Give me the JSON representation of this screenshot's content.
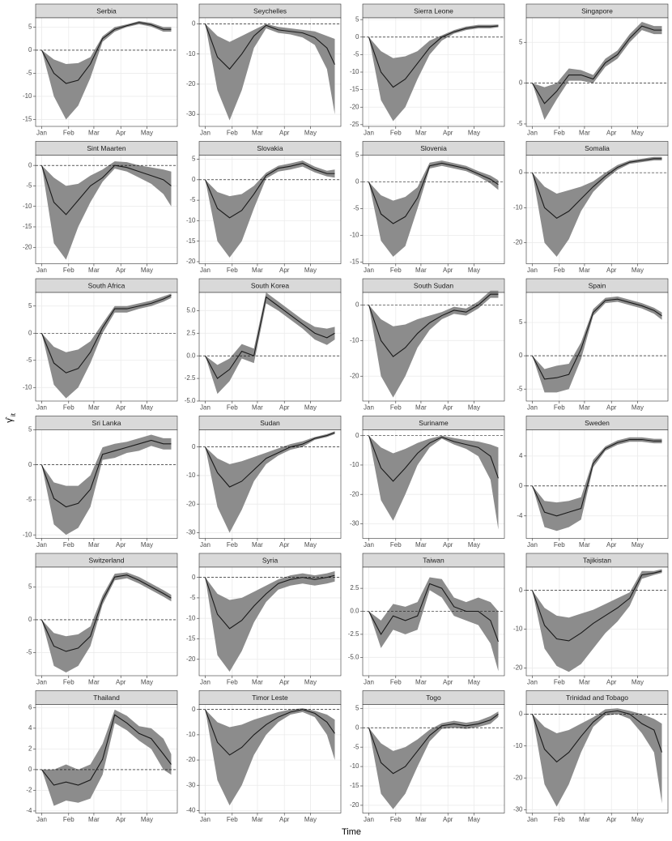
{
  "x_label": "Time",
  "y_label": {
    "symbol": "γ̂",
    "subscript": "it"
  },
  "shared_axes": {
    "x": [
      1,
      15,
      29,
      43,
      57,
      71,
      85,
      99,
      113,
      127,
      141,
      150
    ],
    "xlim": [
      -6,
      157
    ],
    "xticks": [
      {
        "value": 1,
        "label": "Jan"
      },
      {
        "value": 32,
        "label": "Feb"
      },
      {
        "value": 61,
        "label": "Mar"
      },
      {
        "value": 92,
        "label": "Apr"
      },
      {
        "value": 122,
        "label": "May"
      }
    ]
  },
  "style": {
    "line_color": "#1a1a1a",
    "band_color": "#8c8c8c",
    "strip_color": "#d9d9d9",
    "grid": true,
    "reference_line": 0
  },
  "chart_data": [
    {
      "type": "line",
      "title": "Serbia",
      "ylim": [
        -16.5,
        7
      ],
      "yticks": [
        -15,
        -10,
        -5,
        0,
        5
      ],
      "values": [
        0,
        -5,
        -7.2,
        -6.5,
        -3,
        2.5,
        4.5,
        5.3,
        6,
        5.5,
        4.5,
        4.5
      ],
      "lower": [
        0,
        -10,
        -15,
        -12,
        -6,
        1.8,
        4,
        5,
        5.6,
        5.1,
        4,
        4
      ],
      "upper": [
        0,
        -2,
        -3,
        -2.8,
        -1.5,
        3,
        5,
        5.6,
        6.3,
        5.9,
        5,
        5
      ]
    },
    {
      "type": "line",
      "title": "Seychelles",
      "ylim": [
        -34,
        2
      ],
      "yticks": [
        -30,
        -20,
        -10,
        0
      ],
      "values": [
        0,
        -11,
        -15,
        -10,
        -4,
        -0.5,
        -2,
        -2.5,
        -3,
        -4.5,
        -8,
        -13.5
      ],
      "lower": [
        0,
        -22,
        -32,
        -22,
        -8,
        -1.5,
        -3,
        -3.5,
        -4.5,
        -7,
        -15,
        -30
      ],
      "upper": [
        0,
        -4,
        -6,
        -4,
        -2,
        0,
        -1,
        -1.5,
        -2,
        -2.5,
        -4,
        -5
      ]
    },
    {
      "type": "line",
      "title": "Sierra Leone",
      "ylim": [
        -25.5,
        5.5
      ],
      "yticks": [
        -25,
        -20,
        -15,
        -10,
        -5,
        0,
        5
      ],
      "values": [
        0,
        -10,
        -14.3,
        -12,
        -7.5,
        -3,
        0,
        1.5,
        2.5,
        3,
        3,
        3.2
      ],
      "lower": [
        0,
        -18,
        -24,
        -20,
        -12,
        -5,
        -1,
        1,
        2,
        2.5,
        2.5,
        2.8
      ],
      "upper": [
        0,
        -4,
        -6,
        -5.5,
        -4,
        -1,
        0.5,
        2,
        3,
        3.5,
        3.5,
        3.6
      ]
    },
    {
      "type": "line",
      "title": "Singapore",
      "ylim": [
        -5.3,
        8
      ],
      "yticks": [
        -5,
        0,
        5
      ],
      "values": [
        0,
        -2.5,
        -1,
        1,
        1,
        0.5,
        2.5,
        3.5,
        5.5,
        7,
        6.5,
        6.5
      ],
      "lower": [
        0,
        -4.5,
        -2,
        0.3,
        0.3,
        0,
        2,
        3,
        5,
        6.5,
        6,
        6
      ],
      "upper": [
        0,
        -0.5,
        0,
        1.8,
        1.6,
        1,
        3,
        4,
        6,
        7.5,
        7,
        7
      ]
    },
    {
      "type": "line",
      "title": "Sint Maarten",
      "ylim": [
        -24,
        2.5
      ],
      "yticks": [
        -20,
        -15,
        -10,
        -5,
        0
      ],
      "values": [
        0,
        -9,
        -12,
        -8.5,
        -5,
        -3,
        0,
        -0.5,
        -1.5,
        -2.5,
        -3.5,
        -5
      ],
      "lower": [
        0,
        -19,
        -23,
        -15,
        -9,
        -4,
        -0.8,
        -1.5,
        -3,
        -4.5,
        -7,
        -10
      ],
      "upper": [
        0,
        -3,
        -5,
        -4.5,
        -2.5,
        -1,
        1,
        0.8,
        0,
        -0.5,
        -1,
        -1.5
      ]
    },
    {
      "type": "line",
      "title": "Slovakia",
      "ylim": [
        -20.5,
        6
      ],
      "yticks": [
        -20,
        -15,
        -10,
        -5,
        0,
        5
      ],
      "values": [
        0,
        -7,
        -9.3,
        -7.5,
        -3.5,
        1,
        2.8,
        3.3,
        4,
        2.5,
        1.5,
        1.5
      ],
      "lower": [
        0,
        -15,
        -19,
        -15,
        -7,
        0.3,
        2,
        2.5,
        3.2,
        1.8,
        0.8,
        0.5
      ],
      "upper": [
        0,
        -3,
        -4,
        -3.5,
        -1.5,
        1.7,
        3.4,
        4,
        4.7,
        3.2,
        2.2,
        2.5
      ]
    },
    {
      "type": "line",
      "title": "Slovenia",
      "ylim": [
        -15.3,
        5
      ],
      "yticks": [
        -15,
        -10,
        -5,
        0,
        5
      ],
      "values": [
        0,
        -6,
        -7.8,
        -6.5,
        -3,
        3,
        3.5,
        3,
        2.5,
        1.5,
        0.5,
        -0.5
      ],
      "lower": [
        0,
        -11,
        -14,
        -12,
        -5,
        2.5,
        3,
        2.5,
        2,
        1,
        -0.3,
        -1.5
      ],
      "upper": [
        0,
        -2.5,
        -3.5,
        -2.8,
        -1,
        3.6,
        4,
        3.5,
        3,
        2,
        1.2,
        0.3
      ]
    },
    {
      "type": "line",
      "title": "Somalia",
      "ylim": [
        -26,
        5
      ],
      "yticks": [
        -20,
        -10,
        0
      ],
      "values": [
        0,
        -10,
        -13,
        -11,
        -7.5,
        -4,
        -1,
        1.5,
        3,
        3.5,
        4,
        4
      ],
      "lower": [
        0,
        -20,
        -24,
        -19,
        -11,
        -5.5,
        -2,
        0.8,
        2.5,
        3,
        3.5,
        3.5
      ],
      "upper": [
        0,
        -4,
        -6,
        -5,
        -4,
        -2.5,
        0,
        2.2,
        3.5,
        4,
        4.5,
        4.5
      ]
    },
    {
      "type": "line",
      "title": "South Africa",
      "ylim": [
        -12.5,
        7.5
      ],
      "yticks": [
        -10,
        -5,
        0,
        5
      ],
      "values": [
        0,
        -5.5,
        -7.3,
        -6.5,
        -3.5,
        1,
        4.5,
        4.5,
        5,
        5.5,
        6.3,
        7
      ],
      "lower": [
        0,
        -9.5,
        -12,
        -10,
        -5.5,
        0,
        3.8,
        3.8,
        4.5,
        5,
        5.8,
        6.5
      ],
      "upper": [
        0,
        -2.5,
        -3.5,
        -3,
        -1.5,
        1.8,
        5,
        5,
        5.5,
        6,
        6.8,
        7.3
      ]
    },
    {
      "type": "line",
      "title": "South Korea",
      "ylim": [
        -5,
        7
      ],
      "yticks": [
        {
          "value": -5,
          "label": "-5.0"
        },
        {
          "value": -2.5,
          "label": "-2.5"
        },
        {
          "value": 0,
          "label": "0.0"
        },
        {
          "value": 2.5,
          "label": "2.5"
        },
        {
          "value": 5,
          "label": "5.0"
        }
      ],
      "values": [
        0,
        -2.5,
        -1.5,
        0.5,
        0,
        6.5,
        5.5,
        4.5,
        3.5,
        2.5,
        2,
        2.5
      ],
      "lower": [
        0,
        -4.2,
        -2.8,
        -0.3,
        -0.8,
        5.8,
        5,
        4,
        3,
        1.8,
        1.2,
        1.8
      ],
      "upper": [
        0,
        -1,
        -0.3,
        1.3,
        0.8,
        7,
        6,
        5,
        4,
        3.2,
        3,
        3.2
      ]
    },
    {
      "type": "line",
      "title": "South Sudan",
      "ylim": [
        -27,
        3.5
      ],
      "yticks": [
        -20,
        -10,
        0
      ],
      "values": [
        0,
        -10,
        -14.5,
        -12,
        -8,
        -5,
        -3,
        -1.5,
        -2,
        0,
        3,
        3
      ],
      "lower": [
        0,
        -20,
        -26,
        -20,
        -12,
        -7,
        -4,
        -2.5,
        -3,
        -1,
        2,
        2
      ],
      "upper": [
        0,
        -4,
        -6,
        -5.5,
        -4,
        -3,
        -2,
        -0.5,
        -1,
        1,
        4,
        4
      ]
    },
    {
      "type": "line",
      "title": "Spain",
      "ylim": [
        -6.8,
        9.5
      ],
      "yticks": [
        -5,
        0,
        5
      ],
      "values": [
        0,
        -3.5,
        -3.3,
        -2.8,
        1,
        6.5,
        8.3,
        8.5,
        8,
        7.5,
        6.8,
        6
      ],
      "lower": [
        0,
        -5.5,
        -5.5,
        -5,
        -0.5,
        6,
        7.9,
        8.1,
        7.6,
        7.1,
        6.3,
        5.4
      ],
      "upper": [
        0,
        -2,
        -1.5,
        -1.2,
        2,
        7,
        8.7,
        8.9,
        8.4,
        7.9,
        7.2,
        6.5
      ]
    },
    {
      "type": "line",
      "title": "Sri Lanka",
      "ylim": [
        -10.5,
        5
      ],
      "yticks": [
        -10,
        -5,
        0,
        5
      ],
      "values": [
        0,
        -4.8,
        -6,
        -5.5,
        -3.5,
        1.5,
        2,
        2.5,
        3,
        3.5,
        3,
        3
      ],
      "lower": [
        0,
        -8.5,
        -10,
        -9,
        -6,
        0.7,
        1,
        1.7,
        2,
        2.7,
        2.2,
        2.2
      ],
      "upper": [
        0,
        -2.5,
        -3,
        -3,
        -1.5,
        2.5,
        3,
        3.3,
        3.8,
        4.3,
        3.8,
        3.8
      ]
    },
    {
      "type": "line",
      "title": "Sudan",
      "ylim": [
        -32,
        6
      ],
      "yticks": [
        -30,
        -20,
        -10,
        0
      ],
      "values": [
        0,
        -9,
        -14,
        -12,
        -8,
        -4,
        -2,
        0,
        1,
        3,
        4,
        5
      ],
      "lower": [
        0,
        -21,
        -30,
        -22,
        -12,
        -6,
        -3,
        -1,
        0,
        2.5,
        3.5,
        4.5
      ],
      "upper": [
        0,
        -4,
        -6,
        -5,
        -3.5,
        -2,
        -0.5,
        1,
        2,
        3.5,
        4.5,
        5.5
      ]
    },
    {
      "type": "line",
      "title": "Suriname",
      "ylim": [
        -35,
        2
      ],
      "yticks": [
        -30,
        -20,
        -10,
        0
      ],
      "values": [
        0,
        -11,
        -15.5,
        -11,
        -6,
        -2.5,
        -0.5,
        -2,
        -3,
        -4,
        -7,
        -14.5
      ],
      "lower": [
        0,
        -22,
        -29,
        -20,
        -10,
        -4,
        -1,
        -3,
        -4.5,
        -7,
        -15,
        -32
      ],
      "upper": [
        0,
        -4,
        -6,
        -4.5,
        -2.5,
        -1,
        0,
        -0.8,
        -1.5,
        -2,
        -3,
        -4
      ]
    },
    {
      "type": "line",
      "title": "Sweden",
      "ylim": [
        -7,
        7.5
      ],
      "yticks": [
        -4,
        0,
        4
      ],
      "values": [
        0,
        -3.5,
        -4,
        -3.5,
        -3,
        3,
        5,
        5.8,
        6.2,
        6.2,
        6,
        6
      ],
      "lower": [
        0,
        -5.5,
        -6,
        -5.5,
        -4.5,
        2.5,
        4.7,
        5.5,
        5.9,
        5.9,
        5.7,
        5.7
      ],
      "upper": [
        0,
        -2,
        -2.2,
        -2,
        -1.5,
        3.5,
        5.3,
        6.1,
        6.5,
        6.5,
        6.3,
        6.3
      ]
    },
    {
      "type": "line",
      "title": "Switzerland",
      "ylim": [
        -8.5,
        8
      ],
      "yticks": [
        -5,
        0,
        5
      ],
      "values": [
        0,
        -4,
        -4.8,
        -4.3,
        -2.5,
        3,
        6.5,
        6.8,
        6,
        5,
        4,
        3.3
      ],
      "lower": [
        0,
        -7,
        -8,
        -7,
        -4,
        2.3,
        6,
        6.3,
        5.5,
        4.5,
        3.5,
        2.8
      ],
      "upper": [
        0,
        -2,
        -2.5,
        -2.2,
        -1,
        3.7,
        7,
        7.2,
        6.5,
        5.5,
        4.5,
        3.8
      ]
    },
    {
      "type": "line",
      "title": "Syria",
      "ylim": [
        -24,
        2.5
      ],
      "yticks": [
        -20,
        -15,
        -10,
        -5,
        0
      ],
      "values": [
        0,
        -9,
        -12.5,
        -10.5,
        -7,
        -4,
        -1.5,
        -0.5,
        0,
        -0.5,
        0,
        0.5
      ],
      "lower": [
        0,
        -19,
        -23,
        -18,
        -11,
        -6,
        -3,
        -2,
        -1.5,
        -2,
        -1.5,
        -1
      ],
      "upper": [
        0,
        -4,
        -5.5,
        -5,
        -3.5,
        -2,
        -0.5,
        0.5,
        1,
        0.5,
        1,
        1.5
      ]
    },
    {
      "type": "line",
      "title": "Taiwan",
      "ylim": [
        -7,
        4.8
      ],
      "yticks": [
        {
          "value": -5,
          "label": "-5.0"
        },
        {
          "value": -2.5,
          "label": "-2.5"
        },
        {
          "value": 0,
          "label": "0.0"
        },
        {
          "value": 2.5,
          "label": "2.5"
        }
      ],
      "values": [
        0,
        -2.5,
        -0.5,
        -1,
        -0.5,
        3,
        2.5,
        0.5,
        0,
        0,
        -1,
        -3.3
      ],
      "lower": [
        0,
        -4,
        -2,
        -2.5,
        -2,
        2.3,
        1.5,
        -0.5,
        -1,
        -1.5,
        -3.5,
        -6.5
      ],
      "upper": [
        0,
        -1,
        0.8,
        0.5,
        1,
        3.7,
        3.5,
        1.5,
        1,
        1.5,
        1,
        0
      ]
    },
    {
      "type": "line",
      "title": "Tajikistan",
      "ylim": [
        -22,
        6
      ],
      "yticks": [
        -20,
        -10,
        0
      ],
      "values": [
        0,
        -9,
        -12.5,
        -13,
        -11,
        -8.5,
        -6.5,
        -4.5,
        -2,
        4,
        4.5,
        5
      ],
      "lower": [
        0,
        -15,
        -19.5,
        -21,
        -19,
        -15,
        -11,
        -8,
        -4,
        3,
        4,
        4.5
      ],
      "upper": [
        0,
        -4.5,
        -6.5,
        -7,
        -6,
        -5,
        -3.5,
        -2,
        -0.5,
        5,
        5,
        5.5
      ]
    },
    {
      "type": "line",
      "title": "Thailand",
      "ylim": [
        -4.2,
        6.3
      ],
      "yticks": [
        -4,
        -2,
        0,
        2,
        4,
        6
      ],
      "values": [
        0,
        -1.5,
        -1.2,
        -1.5,
        -1,
        1,
        5.3,
        4.5,
        3.5,
        3,
        1.5,
        0.5
      ],
      "lower": [
        0,
        -3.5,
        -3,
        -3.2,
        -2.8,
        -0.5,
        4.5,
        3.8,
        2.8,
        2,
        0,
        -0.5
      ],
      "upper": [
        0,
        0,
        0.5,
        0,
        0.5,
        2.5,
        5.8,
        5.2,
        4.2,
        4,
        3,
        1.5
      ]
    },
    {
      "type": "line",
      "title": "Timor Leste",
      "ylim": [
        -41,
        2
      ],
      "yticks": [
        -40,
        -30,
        -20,
        -10,
        0
      ],
      "values": [
        0,
        -13,
        -18,
        -15,
        -10,
        -6,
        -3,
        -1,
        0,
        -1.5,
        -5,
        -9.5
      ],
      "lower": [
        0,
        -28,
        -38,
        -30,
        -18,
        -10,
        -5,
        -2,
        -1,
        -3,
        -10,
        -20
      ],
      "upper": [
        0,
        -5,
        -7,
        -6,
        -4,
        -2.5,
        -1,
        0,
        0.5,
        -0.5,
        -2,
        -4
      ]
    },
    {
      "type": "line",
      "title": "Togo",
      "ylim": [
        -22,
        6
      ],
      "yticks": [
        -20,
        -15,
        -10,
        -5,
        0,
        5
      ],
      "values": [
        0,
        -9,
        -11.8,
        -10,
        -6,
        -2,
        0.5,
        1,
        0.5,
        1,
        2,
        3.5
      ],
      "lower": [
        0,
        -17,
        -21,
        -17,
        -10,
        -3.5,
        -0.3,
        0,
        -0.3,
        0.2,
        1,
        2.8
      ],
      "upper": [
        0,
        -4,
        -6,
        -5,
        -3,
        -0.5,
        1.2,
        1.8,
        1.3,
        1.8,
        3,
        4.2
      ]
    },
    {
      "type": "line",
      "title": "Trinidad and Tobago",
      "ylim": [
        -31,
        3
      ],
      "yticks": [
        -30,
        -20,
        -10,
        0
      ],
      "values": [
        0,
        -11,
        -15,
        -12,
        -7,
        -2.5,
        0.5,
        1,
        0,
        -3,
        -5,
        -12
      ],
      "lower": [
        0,
        -22,
        -29,
        -22,
        -12,
        -4,
        -0.5,
        0,
        -1.5,
        -6,
        -12,
        -28
      ],
      "upper": [
        0,
        -4,
        -6,
        -5,
        -3,
        -1,
        1.5,
        1.8,
        1,
        0,
        -1.5,
        -3
      ]
    }
  ]
}
